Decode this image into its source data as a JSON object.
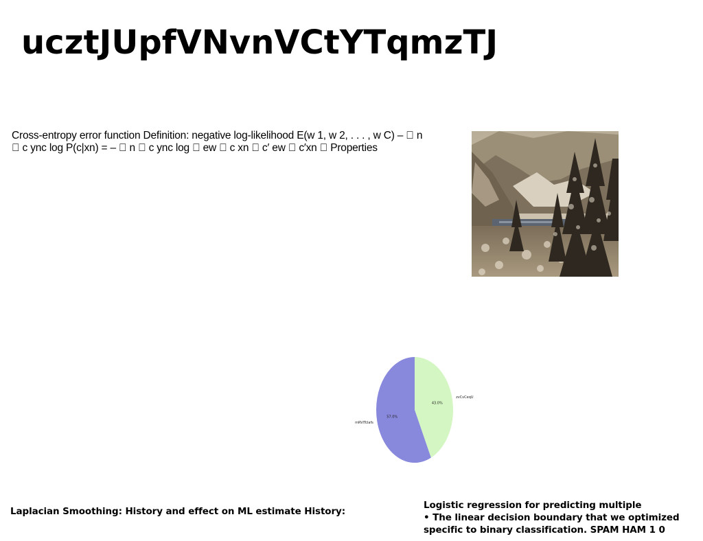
{
  "slide": {
    "title": "ucztJUpfVNvnVCtYTqmzTJ",
    "body_text": "Cross-entropy error function Definition: negative log-likelihood E(w 1, w 2, . . . , w C) – \u0000 n \u0000 c ync log P(c|xn) = – \u0000 n \u0000 c ync log \u0000 ew \u0000 c xn \u0000 c′ ew \u0000 c′xn \u0000 Properties",
    "bottom_left": "Laplacian Smoothing: History and effect on ML estimate History:",
    "bottom_right": {
      "line1": "Logistic regression for predicting multiple",
      "line2": "• The linear decision boundary that we optimized",
      "line3": "specific to binary classification. SPAM HAM 1 0"
    },
    "photo": {
      "icon": "snowy-mountain-forest-photo",
      "colors": {
        "sky": "#c9bfa9",
        "mountain": "#8a7c66",
        "trees": "#2e2820",
        "snow": "#e6ddcc",
        "water": "#5b6470"
      }
    }
  },
  "chart_data": {
    "type": "pie",
    "title": "",
    "slices": [
      {
        "label": "zvCvCeqU",
        "value": 43.0,
        "pct_label": "43.0%",
        "color": "#d3f6c2"
      },
      {
        "label": "mRVlTcIafs",
        "value": 57.0,
        "pct_label": "57.0%",
        "color": "#8888dd"
      }
    ],
    "start_angle_deg": 90,
    "direction": "clockwise",
    "legend": "none"
  }
}
